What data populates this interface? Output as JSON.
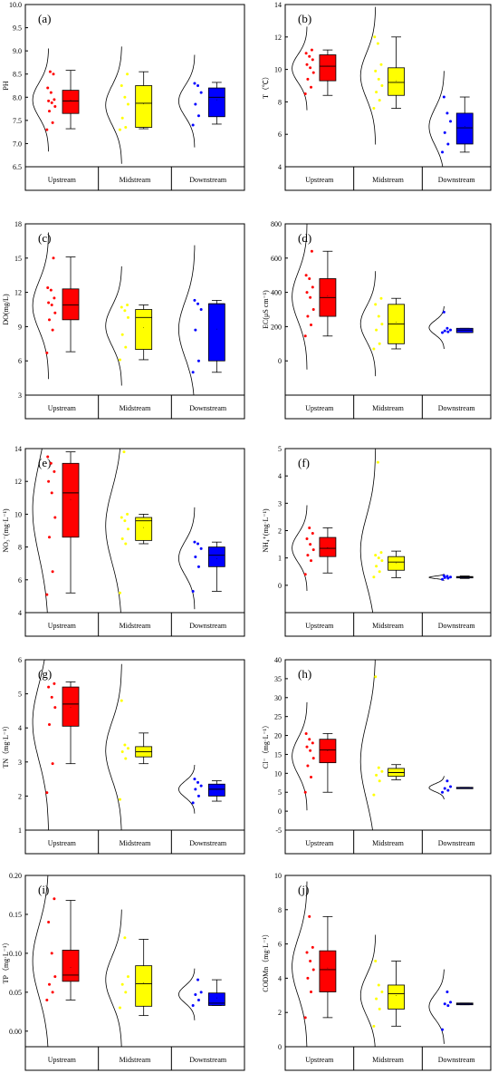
{
  "chart_data": [
    {
      "id": "a",
      "type": "box",
      "panel_label": "(a)",
      "ylabel": "PH",
      "ylim": [
        6.5,
        10.0
      ],
      "yticks": [
        6.5,
        7.0,
        7.5,
        8.0,
        8.5,
        9.0,
        9.5,
        10.0
      ],
      "categories": [
        "Upstream",
        "Midstream",
        "Downstream"
      ],
      "colors": [
        "#ff0000",
        "#ffff00",
        "#0000ff"
      ],
      "boxes": [
        {
          "min": 7.32,
          "q1": 7.65,
          "median": 7.92,
          "q3": 8.15,
          "max": 8.58,
          "mean": 7.94
        },
        {
          "min": 7.32,
          "q1": 7.35,
          "median": 7.87,
          "q3": 8.25,
          "max": 8.55,
          "mean": 7.86
        },
        {
          "min": 7.42,
          "q1": 7.58,
          "median": 8.0,
          "q3": 8.2,
          "max": 8.32,
          "mean": 7.95
        }
      ],
      "points": [
        [
          7.3,
          7.45,
          7.7,
          7.8,
          7.88,
          7.92,
          7.95,
          8.1,
          8.2,
          8.5,
          8.55
        ],
        [
          7.3,
          7.35,
          7.55,
          7.85,
          8.0,
          8.25,
          8.5
        ],
        [
          7.4,
          7.6,
          7.85,
          8.1,
          8.25,
          8.3
        ]
      ]
    },
    {
      "id": "b",
      "type": "box",
      "panel_label": "(b)",
      "ylabel": "T（℃）",
      "ylim": [
        4,
        14
      ],
      "yticks": [
        4,
        6,
        8,
        10,
        12,
        14
      ],
      "categories": [
        "Upstream",
        "Midstream",
        "Downstream"
      ],
      "colors": [
        "#ff0000",
        "#ffff00",
        "#0000ff"
      ],
      "boxes": [
        {
          "min": 8.4,
          "q1": 9.3,
          "median": 10.2,
          "q3": 10.9,
          "max": 11.2,
          "mean": 10.2
        },
        {
          "min": 7.6,
          "q1": 8.4,
          "median": 9.2,
          "q3": 10.1,
          "max": 12.0,
          "mean": 9.3
        },
        {
          "min": 4.9,
          "q1": 5.4,
          "median": 6.4,
          "q3": 7.3,
          "max": 8.3,
          "mean": 6.5
        }
      ],
      "points": [
        [
          8.5,
          8.9,
          9.4,
          9.8,
          10.1,
          10.3,
          10.6,
          10.8,
          11.0,
          11.2
        ],
        [
          7.6,
          8.1,
          8.6,
          9.0,
          9.4,
          9.9,
          10.3,
          11.6,
          12.0
        ],
        [
          4.9,
          5.4,
          6.1,
          6.8,
          7.3,
          8.3
        ]
      ]
    },
    {
      "id": "c",
      "type": "box",
      "panel_label": "(c)",
      "ylabel": "DO(mg/L)",
      "ylim": [
        3,
        18
      ],
      "yticks": [
        3,
        6,
        9,
        12,
        15,
        18
      ],
      "categories": [
        "Upstream",
        "Midstream",
        "Downstream"
      ],
      "colors": [
        "#ff0000",
        "#ffff00",
        "#0000ff"
      ],
      "boxes": [
        {
          "min": 6.8,
          "q1": 9.6,
          "median": 10.9,
          "q3": 12.3,
          "max": 15.1,
          "mean": 10.9
        },
        {
          "min": 6.1,
          "q1": 7.0,
          "median": 9.8,
          "q3": 10.5,
          "max": 10.9,
          "mean": 8.9
        },
        {
          "min": 5.0,
          "q1": 6.0,
          "median": 11.0,
          "q3": 11.0,
          "max": 11.3,
          "mean": 8.8
        }
      ],
      "points": [
        [
          6.7,
          8.7,
          9.6,
          10.2,
          10.9,
          11.1,
          11.5,
          12.2,
          12.4,
          15.0
        ],
        [
          6.1,
          7.2,
          8.3,
          9.8,
          10.4,
          10.7,
          10.9
        ],
        [
          5.0,
          6.0,
          8.7,
          10.5,
          11.0,
          11.3
        ]
      ]
    },
    {
      "id": "d",
      "type": "box",
      "panel_label": "(d)",
      "ylabel": "EC(μS cm⁻¹)",
      "ylim": [
        -200,
        800
      ],
      "yticks": [
        0,
        200,
        400,
        600,
        800
      ],
      "categories": [
        "Upstream",
        "Midstream",
        "Downstream"
      ],
      "colors": [
        "#ff0000",
        "#ffff00",
        "#0000ff"
      ],
      "boxes": [
        {
          "min": 145,
          "q1": 260,
          "median": 370,
          "q3": 480,
          "max": 640,
          "mean": 380
        },
        {
          "min": 70,
          "q1": 100,
          "median": 215,
          "q3": 330,
          "max": 365,
          "mean": 225
        },
        {
          "min": 165,
          "q1": 165,
          "median": 180,
          "q3": 190,
          "max": 190,
          "mean": 180
        }
      ],
      "points": [
        [
          145,
          210,
          260,
          300,
          370,
          400,
          430,
          480,
          500,
          640
        ],
        [
          70,
          100,
          180,
          215,
          260,
          330,
          365
        ],
        [
          165,
          170,
          175,
          180,
          190,
          285
        ]
      ]
    },
    {
      "id": "e",
      "type": "box",
      "panel_label": "(e)",
      "ylabel": "NO₃⁻(mg·L⁻¹)",
      "ylim": [
        4,
        14
      ],
      "yticks": [
        4,
        6,
        8,
        10,
        12,
        14
      ],
      "categories": [
        "Upstream",
        "Midstream",
        "Downstream"
      ],
      "colors": [
        "#ff0000",
        "#ffff00",
        "#0000ff"
      ],
      "boxes": [
        {
          "min": 5.2,
          "q1": 8.6,
          "median": 11.3,
          "q3": 13.1,
          "max": 13.8,
          "mean": 10.9
        },
        {
          "min": 8.2,
          "q1": 8.4,
          "median": 9.6,
          "q3": 9.8,
          "max": 10.0,
          "mean": 9.2
        },
        {
          "min": 5.3,
          "q1": 6.8,
          "median": 7.5,
          "q3": 8.0,
          "max": 8.3,
          "mean": 7.3
        }
      ],
      "points": [
        [
          5.1,
          6.5,
          8.6,
          9.8,
          11.3,
          12.0,
          12.6,
          13.1,
          13.5
        ],
        [
          5.2,
          8.2,
          8.5,
          9.1,
          9.6,
          9.8,
          10.0,
          13.8
        ],
        [
          5.3,
          6.8,
          7.4,
          7.9,
          8.2,
          8.3
        ]
      ]
    },
    {
      "id": "f",
      "type": "box",
      "panel_label": "(f)",
      "ylabel": "NH₄⁺(mg·L⁻¹)",
      "ylim": [
        -1,
        5
      ],
      "yticks": [
        0,
        1,
        2,
        3,
        4,
        5
      ],
      "categories": [
        "Upstream",
        "Midstream",
        "Downstream"
      ],
      "colors": [
        "#ff0000",
        "#ffff00",
        "#0000ff"
      ],
      "boxes": [
        {
          "min": 0.45,
          "q1": 1.05,
          "median": 1.35,
          "q3": 1.75,
          "max": 2.1,
          "mean": 1.38
        },
        {
          "min": 0.28,
          "q1": 0.55,
          "median": 0.85,
          "q3": 1.05,
          "max": 1.25,
          "mean": 0.82
        },
        {
          "min": 0.25,
          "q1": 0.27,
          "median": 0.3,
          "q3": 0.32,
          "max": 0.34,
          "mean": 0.3
        }
      ],
      "points": [
        [
          0.4,
          0.9,
          1.1,
          1.3,
          1.5,
          1.7,
          1.9,
          2.1
        ],
        [
          0.3,
          0.5,
          0.7,
          0.9,
          1.0,
          1.1,
          1.2,
          4.5
        ],
        [
          0.22,
          0.26,
          0.28,
          0.3,
          0.33,
          0.35
        ]
      ]
    },
    {
      "id": "g",
      "type": "box",
      "panel_label": "(g)",
      "ylabel": "TN（mg·L⁻¹）",
      "ylim": [
        1,
        6
      ],
      "yticks": [
        1,
        2,
        3,
        4,
        5,
        6
      ],
      "categories": [
        "Upstream",
        "Midstream",
        "Downstream"
      ],
      "colors": [
        "#ff0000",
        "#ffff00",
        "#0000ff"
      ],
      "boxes": [
        {
          "min": 2.95,
          "q1": 4.05,
          "median": 4.7,
          "q3": 5.2,
          "max": 5.35,
          "mean": 4.6
        },
        {
          "min": 2.95,
          "q1": 3.15,
          "median": 3.3,
          "q3": 3.45,
          "max": 3.85,
          "mean": 3.3
        },
        {
          "min": 1.85,
          "q1": 2.0,
          "median": 2.2,
          "q3": 2.35,
          "max": 2.45,
          "mean": 2.2
        }
      ],
      "points": [
        [
          2.1,
          2.95,
          4.1,
          4.6,
          4.9,
          5.2,
          5.3
        ],
        [
          1.9,
          3.1,
          3.3,
          3.4,
          3.5,
          4.8
        ],
        [
          1.8,
          2.0,
          2.2,
          2.3,
          2.4,
          2.5
        ]
      ]
    },
    {
      "id": "h",
      "type": "box",
      "panel_label": "(h)",
      "ylabel": "Cl⁻（mg·L⁻¹）",
      "ylim": [
        -5,
        40
      ],
      "yticks": [
        -5,
        0,
        5,
        10,
        15,
        20,
        25,
        30,
        35,
        40
      ],
      "categories": [
        "Upstream",
        "Midstream",
        "Downstream"
      ],
      "colors": [
        "#ff0000",
        "#ffff00",
        "#0000ff"
      ],
      "boxes": [
        {
          "min": 5,
          "q1": 12.8,
          "median": 16.2,
          "q3": 19,
          "max": 20.5,
          "mean": 16
        },
        {
          "min": 8.3,
          "q1": 9.2,
          "median": 10.2,
          "q3": 11.3,
          "max": 12.3,
          "mean": 10.2
        },
        {
          "min": 6.1,
          "q1": 6.1,
          "median": 6.2,
          "q3": 6.3,
          "max": 6.3,
          "mean": 6.2
        }
      ],
      "points": [
        [
          5,
          9,
          12,
          14,
          16,
          17,
          18,
          19,
          20.5
        ],
        [
          4.3,
          8,
          9.5,
          10.5,
          11.5,
          35.5
        ],
        [
          5,
          5.5,
          6,
          6.5,
          8
        ]
      ]
    },
    {
      "id": "i",
      "type": "box",
      "panel_label": "(i)",
      "ylabel": "TP（mg·L⁻¹）",
      "ylim": [
        -0.02,
        0.2
      ],
      "yticks": [
        0.0,
        0.05,
        0.1,
        0.15,
        0.2
      ],
      "categories": [
        "Upstream",
        "Midstream",
        "Downstream"
      ],
      "colors": [
        "#ff0000",
        "#ffff00",
        "#0000ff"
      ],
      "boxes": [
        {
          "min": 0.04,
          "q1": 0.064,
          "median": 0.072,
          "q3": 0.104,
          "max": 0.168,
          "mean": 0.082
        },
        {
          "min": 0.02,
          "q1": 0.032,
          "median": 0.061,
          "q3": 0.084,
          "max": 0.118,
          "mean": 0.062
        },
        {
          "min": 0.033,
          "q1": 0.033,
          "median": 0.036,
          "q3": 0.049,
          "max": 0.066,
          "mean": 0.043
        }
      ],
      "points": [
        [
          0.04,
          0.05,
          0.06,
          0.07,
          0.1,
          0.14,
          0.17
        ],
        [
          0.03,
          0.05,
          0.06,
          0.07,
          0.12
        ],
        [
          0.033,
          0.04,
          0.047,
          0.05,
          0.066
        ]
      ]
    },
    {
      "id": "j",
      "type": "box",
      "panel_label": "(j)",
      "ylabel": "CODMn（mg·L⁻¹）",
      "ylim": [
        0,
        10
      ],
      "yticks": [
        0,
        2,
        4,
        6,
        8,
        10
      ],
      "categories": [
        "Upstream",
        "Midstream",
        "Downstream"
      ],
      "colors": [
        "#ff0000",
        "#ffff00",
        "#0000ff"
      ],
      "boxes": [
        {
          "min": 1.7,
          "q1": 3.2,
          "median": 4.5,
          "q3": 5.6,
          "max": 7.6,
          "mean": 4.6
        },
        {
          "min": 1.2,
          "q1": 2.2,
          "median": 3.1,
          "q3": 3.6,
          "max": 5.0,
          "mean": 3.0
        },
        {
          "min": 2.45,
          "q1": 2.45,
          "median": 2.5,
          "q3": 2.55,
          "max": 2.55,
          "mean": 2.5
        }
      ],
      "points": [
        [
          1.7,
          3.2,
          4.0,
          4.5,
          5.0,
          5.5,
          5.8,
          7.6
        ],
        [
          1.2,
          2.2,
          2.8,
          3.2,
          3.6,
          5.0
        ],
        [
          1.0,
          2.4,
          2.5,
          2.6,
          3.2
        ]
      ]
    }
  ]
}
